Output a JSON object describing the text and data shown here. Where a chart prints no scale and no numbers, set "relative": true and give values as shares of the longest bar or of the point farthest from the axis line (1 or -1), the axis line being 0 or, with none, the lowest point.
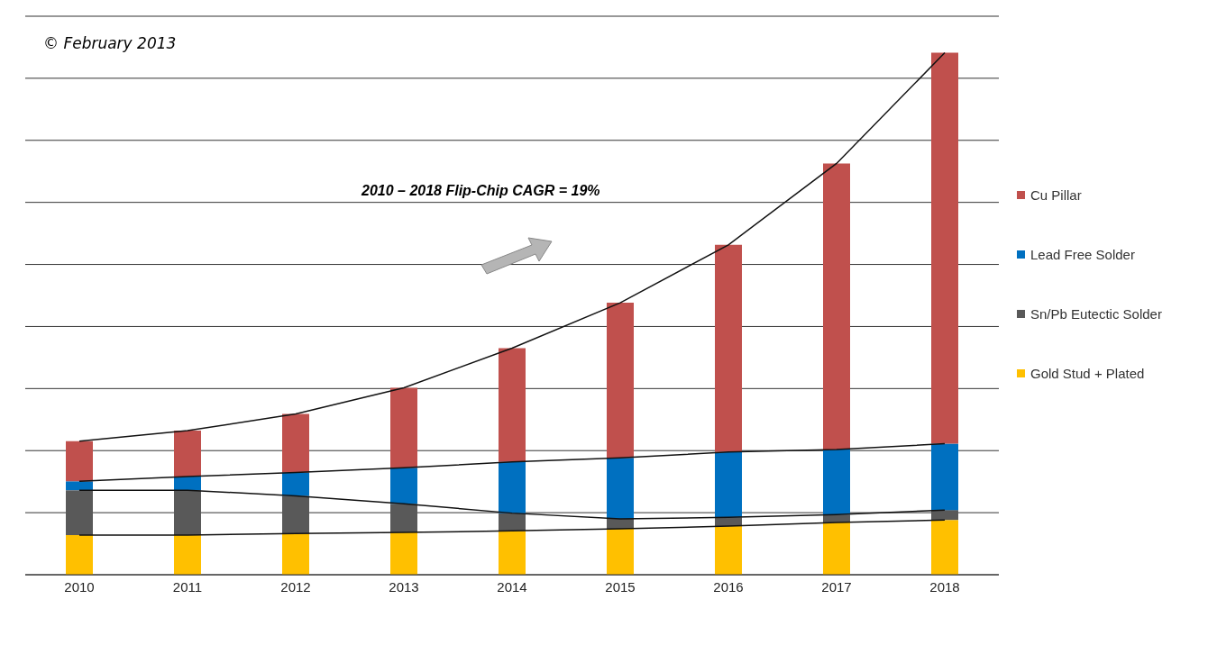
{
  "chart_data": {
    "type": "bar",
    "stacked": true,
    "relative": true,
    "grid": "y",
    "legend": "right",
    "categories": [
      "2010",
      "2011",
      "2012",
      "2013",
      "2014",
      "2015",
      "2016",
      "2017",
      "2018"
    ],
    "series": [
      {
        "name": "Gold Stud + Plated",
        "color": "#ffc000",
        "values": [
          0.076,
          0.076,
          0.079,
          0.081,
          0.084,
          0.088,
          0.093,
          0.1,
          0.105
        ]
      },
      {
        "name": "Sn/Pb Eutectic Solder",
        "color": "#595959",
        "values": [
          0.086,
          0.086,
          0.072,
          0.055,
          0.034,
          0.019,
          0.017,
          0.015,
          0.019
        ]
      },
      {
        "name": "Lead Free Solder",
        "color": "#0070c0",
        "values": [
          0.017,
          0.026,
          0.045,
          0.069,
          0.098,
          0.117,
          0.125,
          0.125,
          0.127
        ]
      },
      {
        "name": "Cu Pillar",
        "color": "#c0504d",
        "values": [
          0.077,
          0.088,
          0.112,
          0.153,
          0.218,
          0.297,
          0.397,
          0.548,
          0.749
        ]
      }
    ],
    "annotations": [
      "© February 2013",
      "2010 – 2018 Flip-Chip CAGR = 19%"
    ]
  }
}
